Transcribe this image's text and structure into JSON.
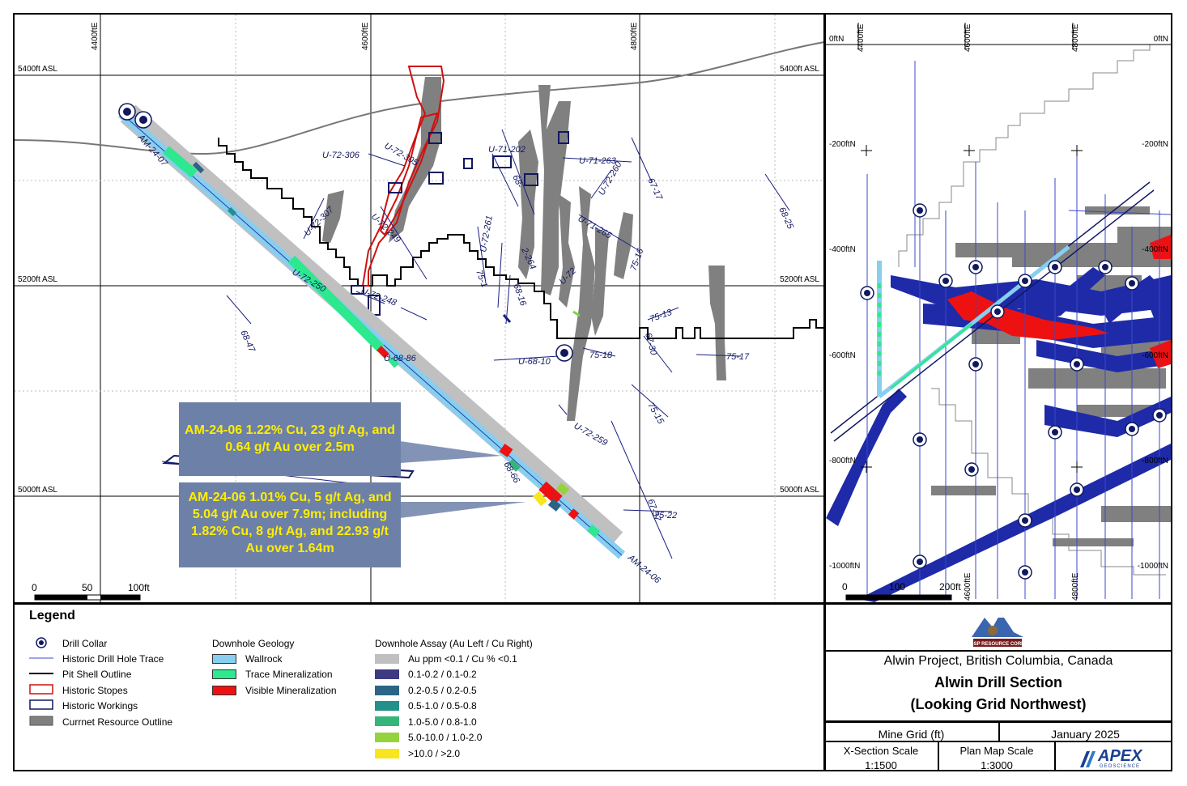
{
  "section": {
    "grid_x_labels": [
      "4400ftE",
      "4600ftE",
      "4800ftE"
    ],
    "grid_y_labels_left": [
      "5400ft ASL",
      "5200ft ASL",
      "5000ft ASL"
    ],
    "grid_y_labels_right": [
      "5400ft ASL",
      "5200ft ASL",
      "5000ft ASL"
    ],
    "drill_holes": [
      "AM-24-07",
      "AM-24-06"
    ],
    "historic_labels": [
      "U-72-306",
      "U-72-305",
      "U-71-202",
      "U-71-263",
      "U-72-260",
      "67-17",
      "68-25",
      "U-72-307",
      "U-72-249",
      "U-72-261",
      "U-71-265",
      "U-72-250",
      "U-72-248",
      "68-47",
      "U-68-86",
      "U-68-10",
      "75-18",
      "75-13",
      "67-30",
      "75-17",
      "75-16",
      "75-15",
      "U-72-259",
      "68-66",
      "67-37",
      "75-22",
      "U-72",
      "68-",
      "2-264",
      "68-16",
      "75-1"
    ],
    "scale": {
      "ticks": [
        "0",
        "50",
        "100ft"
      ]
    },
    "callouts": [
      "AM-24-06 1.22% Cu, 23 g/t Ag, and 0.64 g/t Au over 2.5m",
      "AM-24-06 1.01% Cu, 5 g/t Ag, and 5.04 g/t Au over 7.9m; including 1.82% Cu, 8 g/t Ag, and 22.93 g/t Au over 1.64m"
    ]
  },
  "plan": {
    "x_labels": [
      "4400ftE",
      "4600ftE",
      "4800ftE"
    ],
    "x_labels_bottom": [
      "4600ftE",
      "4800ftE"
    ],
    "y_labels_left": [
      "0ftN",
      "-200ftN",
      "-400ftN",
      "-600ftN",
      "-800ftN",
      "-1000ftN"
    ],
    "y_labels_right": [
      "0ftN",
      "-200ftN",
      "-400ftN",
      "-600ftN",
      "-800ftN",
      "-1000ftN"
    ],
    "scale": {
      "ticks": [
        "0",
        "100",
        "200ft"
      ]
    }
  },
  "legend": {
    "title": "Legend",
    "symbols": [
      "Drill Collar",
      "Historic Drill Hole Trace",
      "Pit Shell Outline",
      "Historic Stopes",
      "Historic Workings",
      "Currnet Resource Outline"
    ],
    "geology_title": "Downhole Geology",
    "geology": [
      {
        "label": "Wallrock",
        "color": "#87cef0"
      },
      {
        "label": "Trace Mineralization",
        "color": "#2ee890"
      },
      {
        "label": "Visible Mineralization",
        "color": "#ee1111"
      }
    ],
    "assay_title": "Downhole Assay (Au Left / Cu Right)",
    "assay": [
      {
        "label": "Au ppm <0.1 / Cu % <0.1",
        "color": "#c0c0c0"
      },
      {
        "label": "0.1-0.2 / 0.1-0.2",
        "color": "#3d3a82"
      },
      {
        "label": "0.2-0.5 / 0.2-0.5",
        "color": "#2c6486"
      },
      {
        "label": "0.5-1.0 / 0.5-0.8",
        "color": "#23908a"
      },
      {
        "label": "1.0-5.0 / 0.8-1.0",
        "color": "#35b57a"
      },
      {
        "label": "5.0-10.0 / 1.0-2.0",
        "color": "#95d33e"
      },
      {
        "label": ">10.0 / >2.0",
        "color": "#f8e51f"
      }
    ]
  },
  "title_block": {
    "logo_text": "GSP RESOURCE CORP.",
    "project": "Alwin Project, British Columbia, Canada",
    "title_line1": "Alwin Drill Section",
    "title_line2": "(Looking Grid Northwest)",
    "grid": "Mine Grid (ft)",
    "date": "January 2025",
    "xsection_scale_label": "X-Section Scale",
    "xsection_scale": "1:1500",
    "plan_scale_label": "Plan Map Scale",
    "plan_scale": "1:3000",
    "apex_logo": "APEX",
    "apex_sub": "GEOSCIENCE"
  }
}
